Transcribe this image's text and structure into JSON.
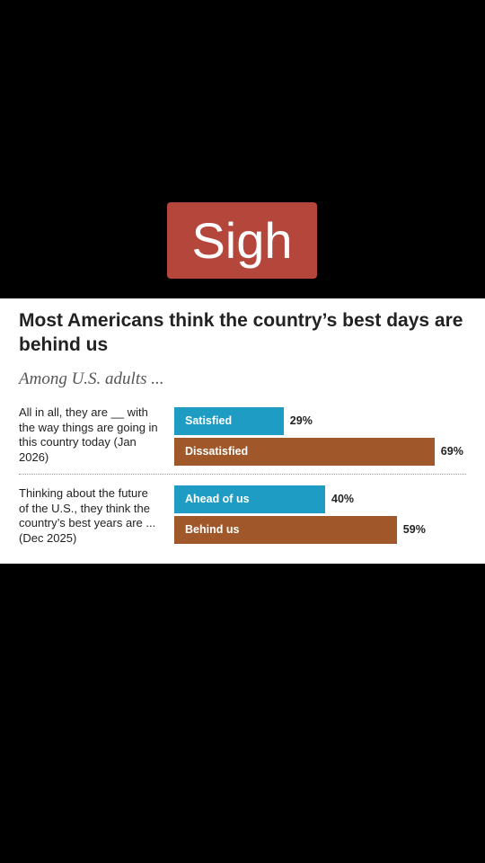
{
  "caption": "Sigh",
  "chart_data": {
    "type": "bar",
    "orientation": "horizontal",
    "title": "Most Americans think the country’s best days are behind us",
    "subtitle": "Among U.S. adults ...",
    "colors": [
      "#1f9cc4",
      "#a0582b"
    ],
    "groups": [
      {
        "label": "All in all, they are __ with the way things are going in this country today (Jan 2026)",
        "categories": [
          "Satisfied",
          "Dissatisfied"
        ],
        "values": [
          29,
          69
        ],
        "value_labels": [
          "29%",
          "69%"
        ]
      },
      {
        "label": "Thinking about the future of the U.S., they think the country’s best years are ... (Dec 2025)",
        "categories": [
          "Ahead of us",
          "Behind us"
        ],
        "values": [
          40,
          59
        ],
        "value_labels": [
          "40%",
          "59%"
        ]
      }
    ]
  }
}
